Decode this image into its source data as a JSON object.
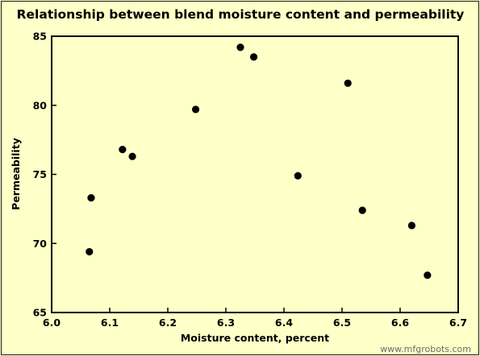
{
  "chart_data": {
    "type": "scatter",
    "title": "Relationship between blend moisture content and permeability",
    "xlabel": "Moisture content, percent",
    "ylabel": "Permeability",
    "xlim": [
      6.0,
      6.7
    ],
    "ylim": [
      65,
      85
    ],
    "xticks": [
      "6.0",
      "6.1",
      "6.2",
      "6.3",
      "6.4",
      "6.5",
      "6.6",
      "6.7"
    ],
    "yticks": [
      "65",
      "70",
      "75",
      "80",
      "85"
    ],
    "grid": false,
    "legend": "none",
    "marker_color": "#000000",
    "points": [
      {
        "x": 6.065,
        "y": 69.4
      },
      {
        "x": 6.068,
        "y": 73.3
      },
      {
        "x": 6.122,
        "y": 76.8
      },
      {
        "x": 6.139,
        "y": 76.3
      },
      {
        "x": 6.248,
        "y": 79.7
      },
      {
        "x": 6.325,
        "y": 84.2
      },
      {
        "x": 6.348,
        "y": 83.5
      },
      {
        "x": 6.424,
        "y": 74.9
      },
      {
        "x": 6.51,
        "y": 81.6
      },
      {
        "x": 6.535,
        "y": 72.4
      },
      {
        "x": 6.62,
        "y": 71.3
      },
      {
        "x": 6.647,
        "y": 67.7
      }
    ]
  },
  "watermark": "www.mfgrobots.com"
}
